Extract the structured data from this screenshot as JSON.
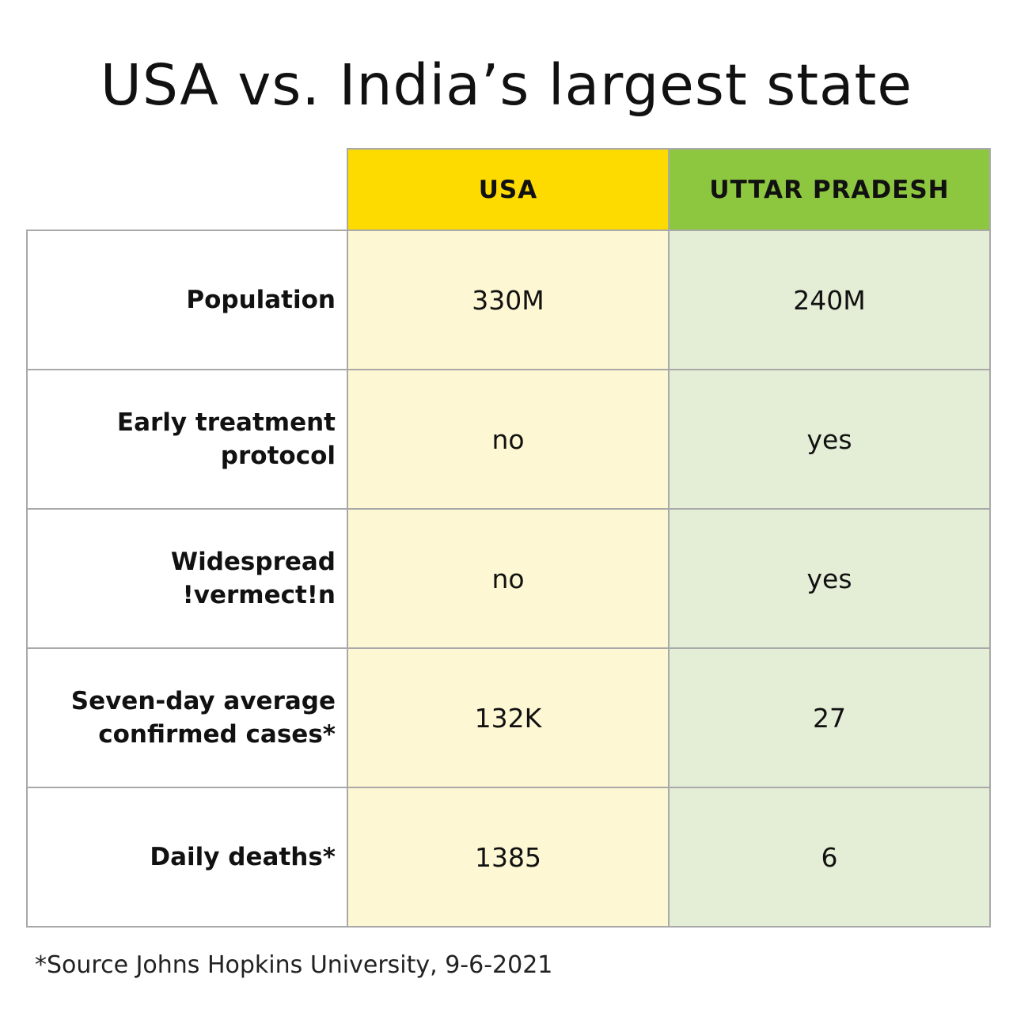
{
  "title": "USA vs. India’s largest state",
  "chart_data": {
    "type": "table",
    "title": "USA vs. India’s largest state",
    "columns": [
      "USA",
      "UTTAR PRADESH"
    ],
    "rows": [
      {
        "label_lines": [
          "Population"
        ],
        "usa": "330M",
        "up": "240M"
      },
      {
        "label_lines": [
          "Early treatment",
          "protocol"
        ],
        "usa": "no",
        "up": "yes"
      },
      {
        "label_lines": [
          "Widespread",
          "!vermect!n"
        ],
        "usa": "no",
        "up": "yes"
      },
      {
        "label_lines": [
          "Seven-day average",
          "confirmed cases*"
        ],
        "usa": "132K",
        "up": "27"
      },
      {
        "label_lines": [
          "Daily deaths*"
        ],
        "usa": "1385",
        "up": "6"
      }
    ],
    "colors": {
      "usa_header": "#fdda00",
      "usa_cells": "#fdf7d3",
      "up_header": "#8dc63f",
      "up_cells": "#e4edd5",
      "border": "#a9a9a9"
    }
  },
  "footnote": "*Source Johns Hopkins University, 9-6-2021"
}
